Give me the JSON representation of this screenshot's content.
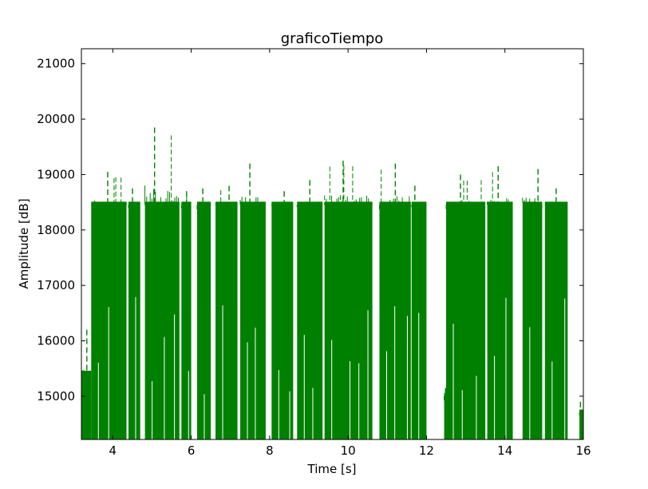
{
  "chart_data": {
    "type": "line",
    "title": "graficoTiempo",
    "xlabel": "Time [s]",
    "ylabel": "Amplitude [dB]",
    "xlim": [
      3.2,
      16
    ],
    "ylim": [
      14220,
      21270
    ],
    "xticks": [
      4,
      6,
      8,
      10,
      12,
      14,
      16
    ],
    "yticks": [
      15000,
      16000,
      17000,
      18000,
      19000,
      20000,
      21000
    ],
    "grid": false,
    "legend": "none",
    "series_color": "#008000",
    "series_style": "dashed",
    "bursts": [
      {
        "x_start": 3.2,
        "x_end": 3.45,
        "level": 15400,
        "peak": 16200
      },
      {
        "x_start": 3.45,
        "x_end": 4.35,
        "level": 18450,
        "peak": 19050
      },
      {
        "x_start": 4.4,
        "x_end": 4.7,
        "level": 18450,
        "peak": 18750
      },
      {
        "x_start": 4.82,
        "x_end": 5.7,
        "level": 18450,
        "peak": 19850
      },
      {
        "x_start": 5.75,
        "x_end": 6.0,
        "level": 18450,
        "peak": 18700
      },
      {
        "x_start": 6.15,
        "x_end": 6.5,
        "level": 18450,
        "peak": 18750
      },
      {
        "x_start": 6.62,
        "x_end": 7.18,
        "level": 18450,
        "peak": 18800
      },
      {
        "x_start": 7.25,
        "x_end": 7.9,
        "level": 18450,
        "peak": 19200
      },
      {
        "x_start": 8.05,
        "x_end": 8.6,
        "level": 18450,
        "peak": 18700
      },
      {
        "x_start": 8.7,
        "x_end": 9.35,
        "level": 18450,
        "peak": 18900
      },
      {
        "x_start": 9.4,
        "x_end": 10.62,
        "level": 18450,
        "peak": 19250
      },
      {
        "x_start": 10.8,
        "x_end": 11.6,
        "level": 18450,
        "peak": 19200
      },
      {
        "x_start": 11.62,
        "x_end": 12.0,
        "level": 18450,
        "peak": 18800
      },
      {
        "x_start": 12.45,
        "x_end": 12.5,
        "level": 15000,
        "peak": 15150
      },
      {
        "x_start": 12.5,
        "x_end": 13.5,
        "level": 18450,
        "peak": 19000
      },
      {
        "x_start": 13.55,
        "x_end": 14.2,
        "level": 18450,
        "peak": 19150
      },
      {
        "x_start": 14.45,
        "x_end": 14.95,
        "level": 18450,
        "peak": 19100
      },
      {
        "x_start": 15.02,
        "x_end": 15.6,
        "level": 18450,
        "peak": 18750
      },
      {
        "x_start": 15.9,
        "x_end": 16.0,
        "level": 14700,
        "peak": 14900
      }
    ]
  }
}
